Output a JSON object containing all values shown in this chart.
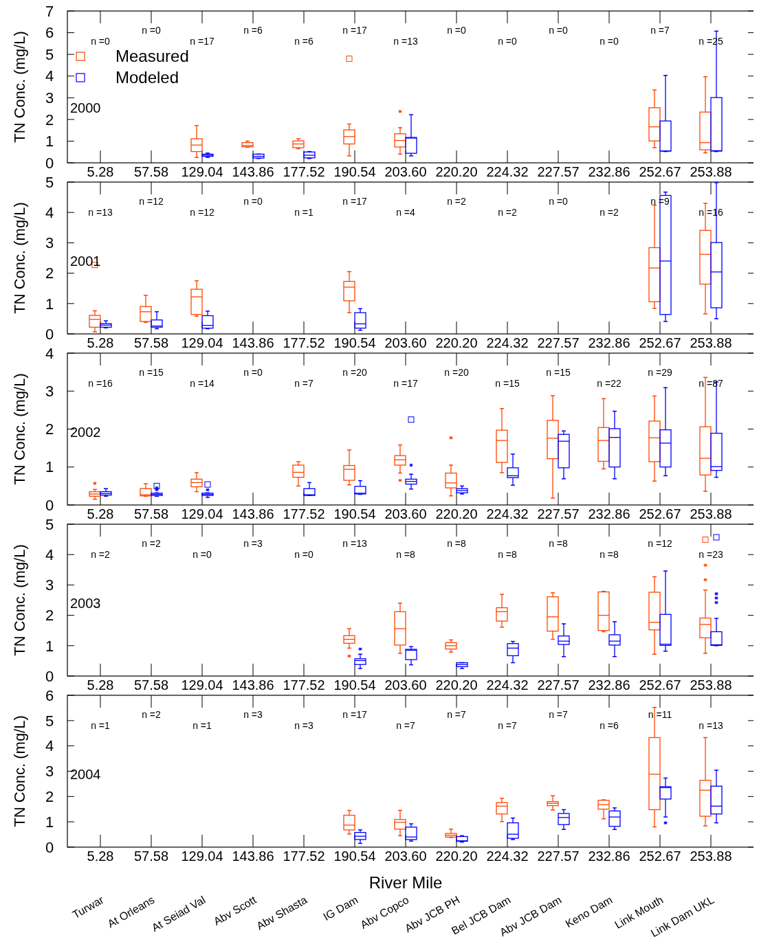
{
  "chart_data": [
    {
      "type": "box",
      "categories": [
        "5.28",
        "57.58",
        "129.04",
        "143.86",
        "177.52",
        "190.54",
        "203.60",
        "220.20",
        "224.32",
        "227.57",
        "232.86",
        "252.67",
        "253.88"
      ],
      "ylabel": "TN Conc. (mg/L)",
      "ylim": [
        0,
        7
      ],
      "yticks": [
        0,
        1,
        2,
        3,
        4,
        5,
        6,
        7
      ],
      "legend": "top left",
      "series": [
        {
          "name": "Measured",
          "color": "#ff4500",
          "boxes": [
            null,
            null,
            {
              "low": 0.25,
              "q1": 0.52,
              "median": 0.82,
              "q3": 1.11,
              "high": 1.72
            },
            {
              "low": 0.72,
              "q1": 0.74,
              "median": 0.8,
              "q3": 0.93,
              "high": 1.0
            },
            {
              "low": 0.65,
              "q1": 0.7,
              "median": 0.87,
              "q3": 1.01,
              "high": 1.11
            },
            {
              "low": 0.32,
              "q1": 0.87,
              "median": 1.21,
              "q3": 1.52,
              "high": 1.79,
              "outliers": [
                4.8
              ]
            },
            {
              "low": 0.4,
              "q1": 0.73,
              "median": 1.03,
              "q3": 1.34,
              "high": 1.62,
              "outliers": [
                2.37
              ]
            },
            null,
            null,
            null,
            null,
            {
              "low": 0.7,
              "q1": 1.01,
              "median": 1.66,
              "q3": 2.54,
              "high": 3.36
            },
            {
              "low": 0.46,
              "q1": 0.6,
              "median": 0.93,
              "q3": 2.34,
              "high": 3.97
            }
          ]
        },
        {
          "name": "Modeled",
          "color": "#0000ff",
          "boxes": [
            null,
            null,
            {
              "low": 0.25,
              "q1": 0.3,
              "median": 0.35,
              "q3": 0.4,
              "high": 0.45
            },
            {
              "low": 0.2,
              "q1": 0.22,
              "median": 0.3,
              "q3": 0.4,
              "high": 0.4
            },
            {
              "low": 0.2,
              "q1": 0.23,
              "median": 0.35,
              "q3": 0.5,
              "high": 0.52
            },
            null,
            {
              "low": 0.32,
              "q1": 0.44,
              "median": 1.14,
              "q3": 1.17,
              "high": 2.22
            },
            null,
            null,
            null,
            null,
            {
              "low": 0.52,
              "q1": 0.54,
              "median": 0.55,
              "q3": 1.93,
              "high": 4.03
            },
            {
              "low": 0.52,
              "q1": 0.54,
              "median": 0.56,
              "q3": 3.01,
              "high": 6.07
            }
          ]
        }
      ],
      "annotations": [
        "2000",
        "n =0",
        "n =0",
        "n =17",
        "n =6",
        "n =6",
        "n =17",
        "n =13",
        "n =0",
        "n =0",
        "n =0",
        "n =0",
        "n =7",
        "n =25"
      ]
    },
    {
      "type": "box",
      "categories": [
        "5.28",
        "57.58",
        "129.04",
        "143.86",
        "177.52",
        "190.54",
        "203.60",
        "220.20",
        "224.32",
        "227.57",
        "232.86",
        "252.67",
        "253.88"
      ],
      "ylabel": "TN Conc. (mg/L)",
      "ylim": [
        0,
        5
      ],
      "yticks": [
        0,
        1,
        2,
        3,
        4,
        5
      ],
      "series": [
        {
          "color": "#ff4500",
          "boxes": [
            {
              "low": 0.07,
              "q1": 0.22,
              "median": 0.48,
              "q3": 0.61,
              "high": 0.76,
              "outliers": [
                2.27
              ]
            },
            {
              "low": 0.38,
              "q1": 0.41,
              "median": 0.73,
              "q3": 0.9,
              "high": 1.27
            },
            {
              "low": 0.58,
              "q1": 0.64,
              "median": 1.22,
              "q3": 1.47,
              "high": 1.75
            },
            null,
            null,
            {
              "low": 0.7,
              "q1": 1.09,
              "median": 1.54,
              "q3": 1.73,
              "high": 2.05
            },
            null,
            null,
            null,
            null,
            null,
            {
              "low": 0.84,
              "q1": 1.06,
              "median": 2.17,
              "q3": 2.84,
              "high": 4.24
            },
            {
              "low": 0.66,
              "q1": 1.64,
              "median": 2.62,
              "q3": 3.41,
              "high": 4.3
            }
          ]
        },
        {
          "color": "#0000ff",
          "boxes": [
            {
              "low": 0.2,
              "q1": 0.22,
              "median": 0.29,
              "q3": 0.34,
              "high": 0.43
            },
            {
              "low": 0.17,
              "q1": 0.22,
              "median": 0.26,
              "q3": 0.46,
              "high": 0.73
            },
            {
              "low": 0.17,
              "q1": 0.19,
              "median": 0.28,
              "q3": 0.6,
              "high": 0.75
            },
            null,
            null,
            {
              "low": 0.12,
              "q1": 0.19,
              "median": 0.33,
              "q3": 0.7,
              "high": 0.83
            },
            null,
            null,
            null,
            null,
            null,
            {
              "low": 0.41,
              "q1": 0.64,
              "median": 2.4,
              "q3": 4.56,
              "high": 4.67
            },
            {
              "low": 0.5,
              "q1": 0.86,
              "median": 2.04,
              "q3": 3.01,
              "high": 4.98
            }
          ]
        }
      ],
      "annotations": [
        "2001",
        "n =13",
        "n =12",
        "n =12",
        "n =0",
        "n =1",
        "n =17",
        "n =4",
        "n =2",
        "n =2",
        "n =0",
        "n =2",
        "n =9",
        "n =16"
      ]
    },
    {
      "type": "box",
      "categories": [
        "5.28",
        "57.58",
        "129.04",
        "143.86",
        "177.52",
        "190.54",
        "203.60",
        "220.20",
        "224.32",
        "227.57",
        "232.86",
        "252.67",
        "253.88"
      ],
      "ylabel": "TN Conc. (mg/L)",
      "ylim": [
        0,
        4
      ],
      "yticks": [
        0,
        1,
        2,
        3,
        4
      ],
      "series": [
        {
          "color": "#ff4500",
          "boxes": [
            {
              "low": 0.15,
              "q1": 0.23,
              "median": 0.29,
              "q3": 0.35,
              "high": 0.41,
              "outliers": [
                0.57
              ]
            },
            {
              "low": 0.23,
              "q1": 0.24,
              "median": 0.27,
              "q3": 0.43,
              "high": 0.56
            },
            {
              "low": 0.35,
              "q1": 0.48,
              "median": 0.59,
              "q3": 0.68,
              "high": 0.85
            },
            null,
            {
              "low": 0.5,
              "q1": 0.73,
              "median": 0.86,
              "q3": 1.05,
              "high": 1.14
            },
            {
              "low": 0.53,
              "q1": 0.65,
              "median": 0.94,
              "q3": 1.04,
              "high": 1.45
            },
            {
              "low": 0.84,
              "q1": 1.05,
              "median": 1.19,
              "q3": 1.3,
              "high": 1.58,
              "outliers": [
                0.65
              ]
            },
            {
              "low": 0.24,
              "q1": 0.45,
              "median": 0.58,
              "q3": 0.84,
              "high": 1.05,
              "outliers": [
                1.77
              ]
            },
            {
              "low": 0.85,
              "q1": 1.12,
              "median": 1.7,
              "q3": 1.97,
              "high": 2.54
            },
            {
              "low": 0.18,
              "q1": 1.22,
              "median": 1.76,
              "q3": 2.23,
              "high": 2.88
            },
            {
              "low": 0.95,
              "q1": 1.15,
              "median": 1.7,
              "q3": 2.04,
              "high": 2.8
            },
            {
              "low": 0.63,
              "q1": 1.14,
              "median": 1.77,
              "q3": 2.21,
              "high": 2.87
            },
            {
              "low": 0.36,
              "q1": 0.79,
              "median": 1.23,
              "q3": 2.06,
              "high": 3.36
            }
          ]
        },
        {
          "color": "#0000ff",
          "boxes": [
            {
              "low": 0.23,
              "q1": 0.26,
              "median": 0.3,
              "q3": 0.35,
              "high": 0.43
            },
            {
              "low": 0.23,
              "q1": 0.25,
              "median": 0.28,
              "q3": 0.31,
              "high": 0.32,
              "outliers": [
                0.5,
                0.45,
                0.4
              ]
            },
            {
              "low": 0.2,
              "q1": 0.25,
              "median": 0.28,
              "q3": 0.31,
              "high": 0.32,
              "outliers": [
                0.54,
                0.4
              ]
            },
            null,
            {
              "low": 0.25,
              "q1": 0.25,
              "median": 0.27,
              "q3": 0.43,
              "high": 0.59
            },
            {
              "low": 0.28,
              "q1": 0.29,
              "median": 0.31,
              "q3": 0.49,
              "high": 0.64
            },
            {
              "low": 0.42,
              "q1": 0.55,
              "median": 0.62,
              "q3": 0.68,
              "high": 0.81,
              "outliers": [
                2.25,
                1.05
              ]
            },
            {
              "low": 0.29,
              "q1": 0.32,
              "median": 0.38,
              "q3": 0.43,
              "high": 0.5
            },
            {
              "low": 0.52,
              "q1": 0.72,
              "median": 0.77,
              "q3": 0.98,
              "high": 1.34
            },
            {
              "low": 0.69,
              "q1": 0.98,
              "median": 1.68,
              "q3": 1.86,
              "high": 1.95
            },
            {
              "low": 0.69,
              "q1": 1.0,
              "median": 1.78,
              "q3": 2.01,
              "high": 2.47
            },
            {
              "low": 0.77,
              "q1": 1.0,
              "median": 1.63,
              "q3": 1.98,
              "high": 3.09
            },
            {
              "low": 0.73,
              "q1": 0.91,
              "median": 1.01,
              "q3": 1.89,
              "high": 3.24
            }
          ]
        }
      ],
      "annotations": [
        "2002",
        "n =16",
        "n =15",
        "n =14",
        "n =0",
        "n =7",
        "n =20",
        "n =17",
        "n =20",
        "n =15",
        "n =15",
        "n =22",
        "n =29",
        "n =87"
      ]
    },
    {
      "type": "box",
      "categories": [
        "5.28",
        "57.58",
        "129.04",
        "143.86",
        "177.52",
        "190.54",
        "203.60",
        "220.20",
        "224.32",
        "227.57",
        "232.86",
        "252.67",
        "253.88"
      ],
      "ylabel": "TN Conc. (mg/L)",
      "ylim": [
        0,
        5
      ],
      "yticks": [
        0,
        1,
        2,
        3,
        4,
        5
      ],
      "series": [
        {
          "color": "#ff4500",
          "boxes": [
            null,
            null,
            null,
            null,
            null,
            {
              "low": 0.92,
              "q1": 1.08,
              "median": 1.21,
              "q3": 1.33,
              "high": 1.56,
              "outliers": [
                0.66
              ]
            },
            {
              "low": 0.75,
              "q1": 1.02,
              "median": 1.56,
              "q3": 2.12,
              "high": 2.4
            },
            {
              "low": 0.79,
              "q1": 0.89,
              "median": 1.0,
              "q3": 1.1,
              "high": 1.19
            },
            {
              "low": 1.61,
              "q1": 1.81,
              "median": 2.12,
              "q3": 2.25,
              "high": 2.69
            },
            {
              "low": 1.21,
              "q1": 1.48,
              "median": 1.95,
              "q3": 2.61,
              "high": 2.74
            },
            {
              "low": 1.46,
              "q1": 1.5,
              "median": 2.0,
              "q3": 2.77,
              "high": 2.79
            },
            {
              "low": 0.72,
              "q1": 1.52,
              "median": 1.77,
              "q3": 2.76,
              "high": 3.27
            },
            {
              "low": 0.75,
              "q1": 1.26,
              "median": 1.7,
              "q3": 1.91,
              "high": 2.83,
              "outliers": [
                3.65,
                3.17,
                4.49
              ]
            }
          ]
        },
        {
          "color": "#0000ff",
          "boxes": [
            null,
            null,
            null,
            null,
            null,
            {
              "low": 0.25,
              "q1": 0.38,
              "median": 0.51,
              "q3": 0.57,
              "high": 0.72,
              "outliers": [
                0.89
              ]
            },
            {
              "low": 0.37,
              "q1": 0.54,
              "median": 0.85,
              "q3": 0.88,
              "high": 0.97
            },
            {
              "low": 0.25,
              "q1": 0.31,
              "median": 0.38,
              "q3": 0.44,
              "high": 0.44
            },
            {
              "low": 0.44,
              "q1": 0.67,
              "median": 0.92,
              "q3": 1.07,
              "high": 1.14
            },
            {
              "low": 0.64,
              "q1": 1.04,
              "median": 1.15,
              "q3": 1.32,
              "high": 1.72
            },
            {
              "low": 0.64,
              "q1": 1.02,
              "median": 1.15,
              "q3": 1.36,
              "high": 1.79
            },
            {
              "low": 0.82,
              "q1": 1.01,
              "median": 1.05,
              "q3": 2.03,
              "high": 3.46
            },
            {
              "low": 1.0,
              "q1": 1.01,
              "median": 1.03,
              "q3": 1.46,
              "high": 1.9,
              "outliers": [
                2.71,
                2.57,
                2.42,
                4.57
              ]
            }
          ]
        }
      ],
      "annotations": [
        "2003",
        "n =2",
        "n =2",
        "n =0",
        "n =3",
        "n =0",
        "n =13",
        "n =8",
        "n =8",
        "n =8",
        "n =8",
        "n =8",
        "n =12",
        "n =23"
      ]
    },
    {
      "type": "box",
      "categories": [
        "5.28",
        "57.58",
        "129.04",
        "143.86",
        "177.52",
        "190.54",
        "203.60",
        "220.20",
        "224.32",
        "227.57",
        "232.86",
        "252.67",
        "253.88"
      ],
      "ylabel": "TN Conc. (mg/L)",
      "xlabel": "River Mile",
      "ylim": [
        0,
        6
      ],
      "yticks": [
        0,
        1,
        2,
        3,
        4,
        5,
        6
      ],
      "series": [
        {
          "color": "#ff4500",
          "boxes": [
            null,
            null,
            null,
            null,
            null,
            {
              "low": 0.52,
              "q1": 0.68,
              "median": 0.87,
              "q3": 1.26,
              "high": 1.45
            },
            {
              "low": 0.45,
              "q1": 0.71,
              "median": 0.98,
              "q3": 1.09,
              "high": 1.45
            },
            {
              "low": 0.38,
              "q1": 0.4,
              "median": 0.47,
              "q3": 0.54,
              "high": 0.71
            },
            {
              "low": 1.01,
              "q1": 1.31,
              "median": 1.62,
              "q3": 1.76,
              "high": 1.93
            },
            {
              "low": 1.47,
              "q1": 1.64,
              "median": 1.73,
              "q3": 1.8,
              "high": 2.03
            },
            {
              "low": 1.12,
              "q1": 1.5,
              "median": 1.68,
              "q3": 1.85,
              "high": 1.87
            },
            {
              "low": 0.8,
              "q1": 1.48,
              "median": 2.88,
              "q3": 4.33,
              "high": 5.52
            },
            {
              "low": 0.84,
              "q1": 1.22,
              "median": 2.25,
              "q3": 2.64,
              "high": 4.33
            }
          ]
        },
        {
          "color": "#0000ff",
          "boxes": [
            null,
            null,
            null,
            null,
            null,
            {
              "low": 0.15,
              "q1": 0.3,
              "median": 0.43,
              "q3": 0.58,
              "high": 0.68
            },
            {
              "low": 0.24,
              "q1": 0.3,
              "median": 0.4,
              "q3": 0.79,
              "high": 0.92
            },
            {
              "low": 0.2,
              "q1": 0.23,
              "median": 0.25,
              "q3": 0.42,
              "high": 0.45
            },
            {
              "low": 0.3,
              "q1": 0.35,
              "median": 0.51,
              "q3": 0.96,
              "high": 1.15
            },
            {
              "low": 0.7,
              "q1": 0.89,
              "median": 1.17,
              "q3": 1.33,
              "high": 1.48
            },
            {
              "low": 0.7,
              "q1": 0.82,
              "median": 1.19,
              "q3": 1.43,
              "high": 1.55
            },
            {
              "low": 1.19,
              "q1": 1.9,
              "median": 2.35,
              "q3": 2.39,
              "high": 2.73,
              "outliers": [
                0.96
              ]
            },
            {
              "low": 0.96,
              "q1": 1.31,
              "median": 1.62,
              "q3": 2.41,
              "high": 3.04
            }
          ]
        }
      ],
      "annotations": [
        "2004",
        "n =1",
        "n =2",
        "n =1",
        "n =3",
        "n =3",
        "n =17",
        "n =7",
        "n =7",
        "n =7",
        "n =7",
        "n =6",
        "n =11",
        "n =13",
        "Turwar",
        "At Orleans",
        "At Seiad Val",
        "Abv Scott",
        "Abv Shasta",
        "IG Dam",
        "Abv Copco",
        "Abv JCB PH",
        "Bel JCB Dam",
        "Abv JCB Dam",
        "Keno Dam",
        "Link Mouth",
        "Link Dam UKL"
      ]
    }
  ]
}
